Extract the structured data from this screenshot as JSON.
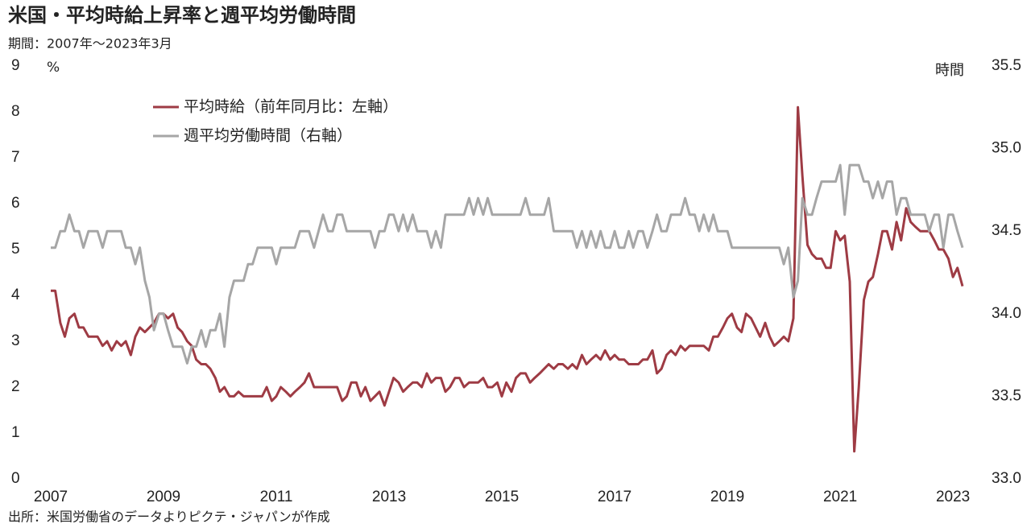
{
  "chart_data": {
    "type": "line",
    "title": "米国・平均時給上昇率と週平均労働時間",
    "subtitle": "期間：2007年～2023年3月",
    "source": "出所：米国労働省のデータよりピクテ・ジャパンが作成",
    "y_unit": "%",
    "y2_unit": "時間",
    "legend": "upper left",
    "xlim": [
      2007,
      2023.17
    ],
    "xticks": [
      2007,
      2009,
      2011,
      2013,
      2015,
      2017,
      2019,
      2021,
      2023
    ],
    "ylim": [
      0,
      9
    ],
    "yticks": [
      0,
      1,
      2,
      3,
      4,
      5,
      6,
      7,
      8,
      9
    ],
    "y2lim": [
      33.0,
      35.5
    ],
    "y2ticks": [
      {
        "value": 33.0,
        "label": "33.0"
      },
      33.5,
      {
        "value": 34.0,
        "label": "34.0"
      },
      34.5,
      {
        "value": 35.0,
        "label": "35.0"
      },
      35.5
    ],
    "x": [
      2007,
      2007.08,
      2007.17,
      2007.25,
      2007.33,
      2007.42,
      2007.5,
      2007.58,
      2007.67,
      2007.75,
      2007.83,
      2007.92,
      2008,
      2008.08,
      2008.17,
      2008.25,
      2008.33,
      2008.42,
      2008.5,
      2008.58,
      2008.67,
      2008.75,
      2008.83,
      2008.92,
      2009,
      2009.08,
      2009.17,
      2009.25,
      2009.33,
      2009.42,
      2009.5,
      2009.58,
      2009.67,
      2009.75,
      2009.83,
      2009.92,
      2010,
      2010.08,
      2010.17,
      2010.25,
      2010.33,
      2010.42,
      2010.5,
      2010.58,
      2010.67,
      2010.75,
      2010.83,
      2010.92,
      2011,
      2011.08,
      2011.17,
      2011.25,
      2011.33,
      2011.42,
      2011.5,
      2011.58,
      2011.67,
      2011.75,
      2011.83,
      2011.92,
      2012,
      2012.08,
      2012.17,
      2012.25,
      2012.33,
      2012.42,
      2012.5,
      2012.58,
      2012.67,
      2012.75,
      2012.83,
      2012.92,
      2013,
      2013.08,
      2013.17,
      2013.25,
      2013.33,
      2013.42,
      2013.5,
      2013.58,
      2013.67,
      2013.75,
      2013.83,
      2013.92,
      2014,
      2014.08,
      2014.17,
      2014.25,
      2014.33,
      2014.42,
      2014.5,
      2014.58,
      2014.67,
      2014.75,
      2014.83,
      2014.92,
      2015,
      2015.08,
      2015.17,
      2015.25,
      2015.33,
      2015.42,
      2015.5,
      2015.58,
      2015.67,
      2015.75,
      2015.83,
      2015.92,
      2016,
      2016.08,
      2016.17,
      2016.25,
      2016.33,
      2016.42,
      2016.5,
      2016.58,
      2016.67,
      2016.75,
      2016.83,
      2016.92,
      2017,
      2017.08,
      2017.17,
      2017.25,
      2017.33,
      2017.42,
      2017.5,
      2017.58,
      2017.67,
      2017.75,
      2017.83,
      2017.92,
      2018,
      2018.08,
      2018.17,
      2018.25,
      2018.33,
      2018.42,
      2018.5,
      2018.58,
      2018.67,
      2018.75,
      2018.83,
      2018.92,
      2019,
      2019.08,
      2019.17,
      2019.25,
      2019.33,
      2019.42,
      2019.5,
      2019.58,
      2019.67,
      2019.75,
      2019.83,
      2019.92,
      2020,
      2020.08,
      2020.17,
      2020.25,
      2020.33,
      2020.42,
      2020.5,
      2020.58,
      2020.67,
      2020.75,
      2020.83,
      2020.92,
      2021,
      2021.08,
      2021.17,
      2021.25,
      2021.33,
      2021.42,
      2021.5,
      2021.58,
      2021.67,
      2021.75,
      2021.83,
      2021.92,
      2022,
      2022.08,
      2022.17,
      2022.25,
      2022.33,
      2022.42,
      2022.5,
      2022.58,
      2022.67,
      2022.75,
      2022.83,
      2022.92,
      2023,
      2023.08,
      2023.17
    ],
    "series": [
      {
        "name": "平均時給（前年同月比：左軸）",
        "color": "#9e3b44",
        "values": [
          4.1,
          4.1,
          3.4,
          3.1,
          3.5,
          3.6,
          3.3,
          3.3,
          3.1,
          3.1,
          3.1,
          2.9,
          3.0,
          2.8,
          3.0,
          2.9,
          3.0,
          2.7,
          3.1,
          3.3,
          3.2,
          3.3,
          3.4,
          3.6,
          3.6,
          3.5,
          3.6,
          3.3,
          3.2,
          3.0,
          2.9,
          2.6,
          2.5,
          2.5,
          2.4,
          2.2,
          1.9,
          2.0,
          1.8,
          1.8,
          1.9,
          1.8,
          1.8,
          1.8,
          1.8,
          1.8,
          2.0,
          1.7,
          1.8,
          2.0,
          1.9,
          1.8,
          1.9,
          2.0,
          2.1,
          2.3,
          2.0,
          2.0,
          2.0,
          2.0,
          2.0,
          2.0,
          1.7,
          1.8,
          2.1,
          2.1,
          1.8,
          2.0,
          1.7,
          1.8,
          1.9,
          1.6,
          1.9,
          2.2,
          2.1,
          1.9,
          2.0,
          2.1,
          2.1,
          2.0,
          2.3,
          2.1,
          2.2,
          2.2,
          1.9,
          2.0,
          2.2,
          2.2,
          2.0,
          2.1,
          2.1,
          2.1,
          2.2,
          2.0,
          2.0,
          2.1,
          1.8,
          2.1,
          1.9,
          2.2,
          2.3,
          2.3,
          2.1,
          2.2,
          2.3,
          2.4,
          2.5,
          2.4,
          2.5,
          2.5,
          2.4,
          2.5,
          2.4,
          2.7,
          2.5,
          2.6,
          2.7,
          2.6,
          2.8,
          2.6,
          2.7,
          2.6,
          2.6,
          2.5,
          2.5,
          2.5,
          2.6,
          2.6,
          2.8,
          2.3,
          2.4,
          2.7,
          2.8,
          2.7,
          2.9,
          2.8,
          2.9,
          2.9,
          2.9,
          2.9,
          2.8,
          3.1,
          3.1,
          3.3,
          3.5,
          3.6,
          3.3,
          3.2,
          3.6,
          3.5,
          3.3,
          3.1,
          3.4,
          3.1,
          2.9,
          3.0,
          3.1,
          3.0,
          3.5,
          8.1,
          6.6,
          5.1,
          4.9,
          4.8,
          4.8,
          4.6,
          4.6,
          5.4,
          5.2,
          5.3,
          4.3,
          0.6,
          2.0,
          3.9,
          4.3,
          4.4,
          4.9,
          5.4,
          5.4,
          5.0,
          5.6,
          5.2,
          5.9,
          5.6,
          5.5,
          5.4,
          5.4,
          5.4,
          5.2,
          5.0,
          5.0,
          4.8,
          4.4,
          4.6,
          4.2
        ]
      },
      {
        "name": "週平均労働時間（右軸）",
        "color": "#a6a6a6",
        "axis": "y2",
        "values": [
          34.4,
          34.4,
          34.5,
          34.5,
          34.6,
          34.5,
          34.5,
          34.4,
          34.5,
          34.5,
          34.5,
          34.4,
          34.5,
          34.5,
          34.5,
          34.5,
          34.4,
          34.4,
          34.3,
          34.4,
          34.2,
          34.1,
          33.9,
          34.0,
          34.0,
          33.9,
          33.8,
          33.8,
          33.8,
          33.7,
          33.8,
          33.8,
          33.9,
          33.8,
          33.9,
          33.9,
          34.0,
          33.8,
          34.1,
          34.2,
          34.2,
          34.2,
          34.3,
          34.3,
          34.4,
          34.4,
          34.4,
          34.4,
          34.3,
          34.4,
          34.4,
          34.4,
          34.4,
          34.5,
          34.5,
          34.5,
          34.4,
          34.5,
          34.6,
          34.5,
          34.5,
          34.6,
          34.6,
          34.5,
          34.5,
          34.5,
          34.5,
          34.5,
          34.5,
          34.4,
          34.5,
          34.5,
          34.6,
          34.6,
          34.5,
          34.6,
          34.5,
          34.6,
          34.5,
          34.5,
          34.5,
          34.4,
          34.5,
          34.4,
          34.6,
          34.6,
          34.6,
          34.6,
          34.6,
          34.7,
          34.6,
          34.7,
          34.6,
          34.7,
          34.6,
          34.6,
          34.6,
          34.6,
          34.6,
          34.6,
          34.6,
          34.7,
          34.6,
          34.6,
          34.6,
          34.6,
          34.7,
          34.5,
          34.5,
          34.5,
          34.5,
          34.5,
          34.4,
          34.5,
          34.4,
          34.5,
          34.4,
          34.5,
          34.4,
          34.4,
          34.5,
          34.4,
          34.4,
          34.5,
          34.4,
          34.5,
          34.5,
          34.4,
          34.5,
          34.6,
          34.5,
          34.5,
          34.6,
          34.6,
          34.6,
          34.7,
          34.6,
          34.6,
          34.5,
          34.6,
          34.5,
          34.6,
          34.5,
          34.5,
          34.5,
          34.4,
          34.4,
          34.4,
          34.4,
          34.4,
          34.4,
          34.4,
          34.4,
          34.4,
          34.4,
          34.4,
          34.3,
          34.4,
          34.1,
          34.2,
          34.7,
          34.6,
          34.6,
          34.7,
          34.8,
          34.8,
          34.8,
          34.8,
          34.9,
          34.6,
          34.9,
          34.9,
          34.9,
          34.8,
          34.8,
          34.7,
          34.8,
          34.7,
          34.8,
          34.8,
          34.6,
          34.7,
          34.7,
          34.6,
          34.6,
          34.6,
          34.6,
          34.5,
          34.6,
          34.6,
          34.4,
          34.6,
          34.6,
          34.5,
          34.4
        ]
      }
    ]
  }
}
